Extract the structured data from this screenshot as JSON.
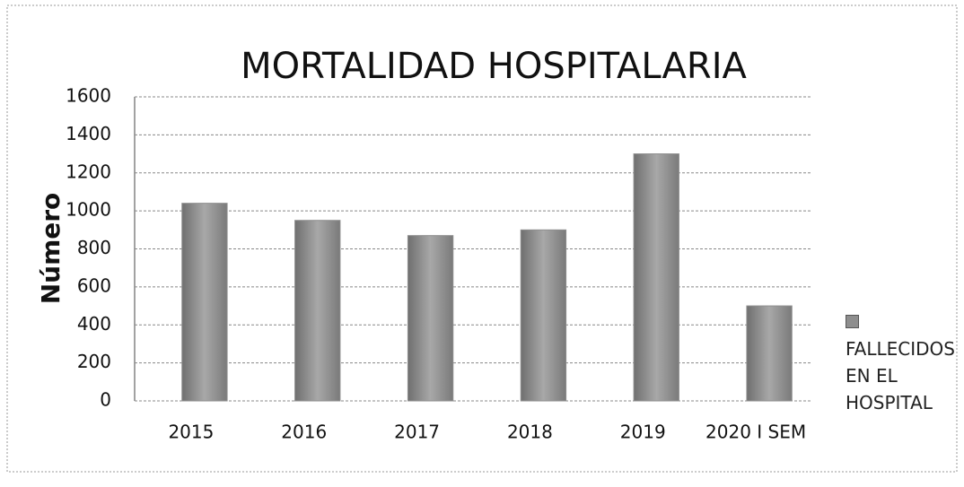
{
  "chart_data": {
    "type": "bar",
    "title": "MORTALIDAD HOSPITALARIA",
    "y_label": "Número",
    "categories": [
      "2015",
      "2016",
      "2017",
      "2018",
      "2019",
      "2020 I SEM"
    ],
    "series": [
      {
        "name": "FALLECIDOS EN EL HOSPITAL",
        "color": "#8e8e8e",
        "values": [
          1040,
          950,
          870,
          900,
          1300,
          500
        ]
      }
    ],
    "ylim": [
      0,
      1600
    ],
    "yticks": [
      0,
      200,
      400,
      600,
      800,
      1000,
      1200,
      1400,
      1600
    ],
    "grid": true,
    "legend": "right"
  }
}
